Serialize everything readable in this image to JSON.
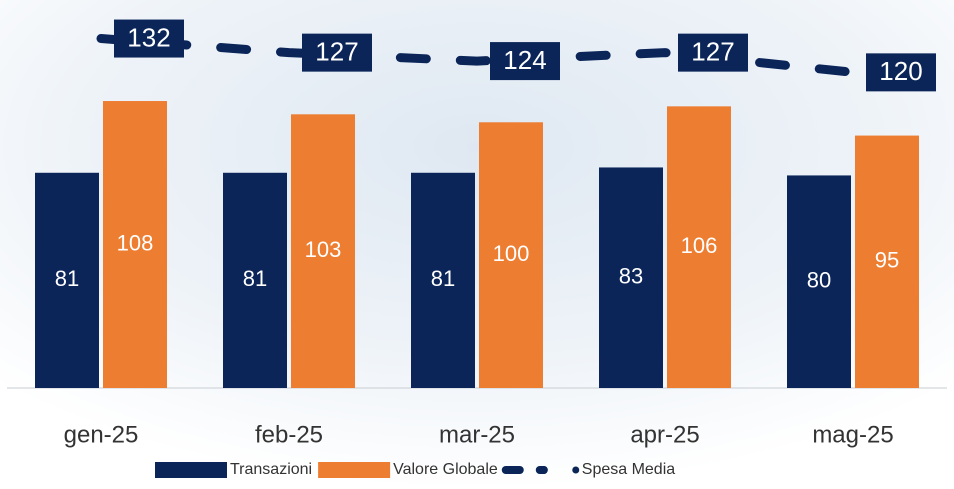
{
  "chart_data": {
    "type": "bar",
    "categories": [
      "gen-25",
      "feb-25",
      "mar-25",
      "apr-25",
      "mag-25"
    ],
    "series": [
      {
        "name": "Transazioni",
        "color": "#0b2559",
        "values": [
          81,
          81,
          81,
          83,
          80
        ]
      },
      {
        "name": "Valore Globale",
        "color": "#ed7d31",
        "values": [
          108,
          103,
          100,
          106,
          95
        ]
      },
      {
        "name": "Spesa Media",
        "color": "#0b2559",
        "type": "line",
        "axis": "y2",
        "values": [
          132,
          127,
          124,
          127,
          120
        ]
      }
    ],
    "ylim": [
      0,
      140
    ],
    "y2lim": [
      8,
      140
    ],
    "legend": "bottom"
  }
}
